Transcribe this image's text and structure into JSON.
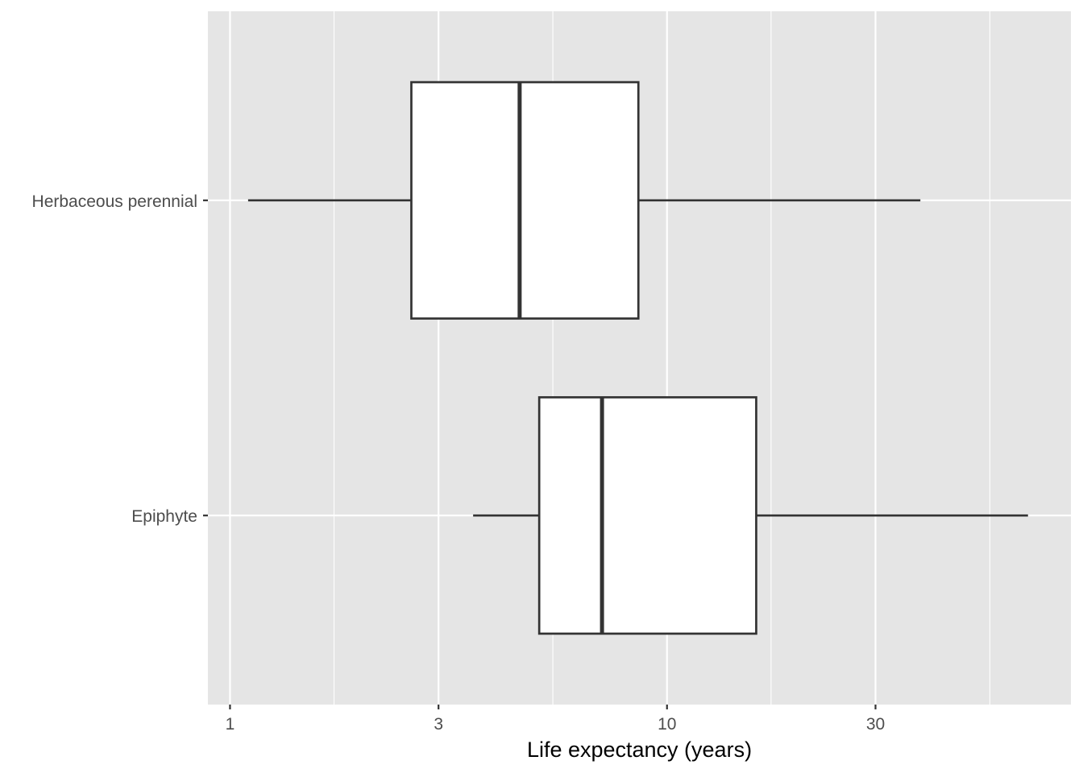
{
  "chart_data": {
    "type": "boxplot",
    "orientation": "horizontal",
    "title": "",
    "xlabel": "Life expectancy (years)",
    "ylabel": "",
    "x_scale": "log10",
    "xlim": [
      0.89,
      84
    ],
    "x_ticks": [
      1,
      3,
      10,
      30
    ],
    "x_tick_labels": [
      "1",
      "3",
      "10",
      "30"
    ],
    "x_minor_gridlines": [
      1.73,
      5.48,
      17.3,
      54.8
    ],
    "grid": true,
    "legend": "none",
    "categories": [
      "Herbaceous perennial",
      "Epiphyte"
    ],
    "boxes": [
      {
        "category": "Herbaceous perennial",
        "whisker_low": 1.1,
        "q1": 2.6,
        "median": 4.6,
        "q3": 8.6,
        "whisker_high": 38
      },
      {
        "category": "Epiphyte",
        "whisker_low": 3.6,
        "q1": 5.1,
        "median": 7.1,
        "q3": 16.0,
        "whisker_high": 67
      }
    ],
    "colors": {
      "panel_background": "#e5e5e5",
      "grid": "#ffffff",
      "box_fill": "#ffffff",
      "box_stroke": "#333333",
      "tick_text": "#4d4d4d",
      "axis_title": "#000000"
    }
  }
}
